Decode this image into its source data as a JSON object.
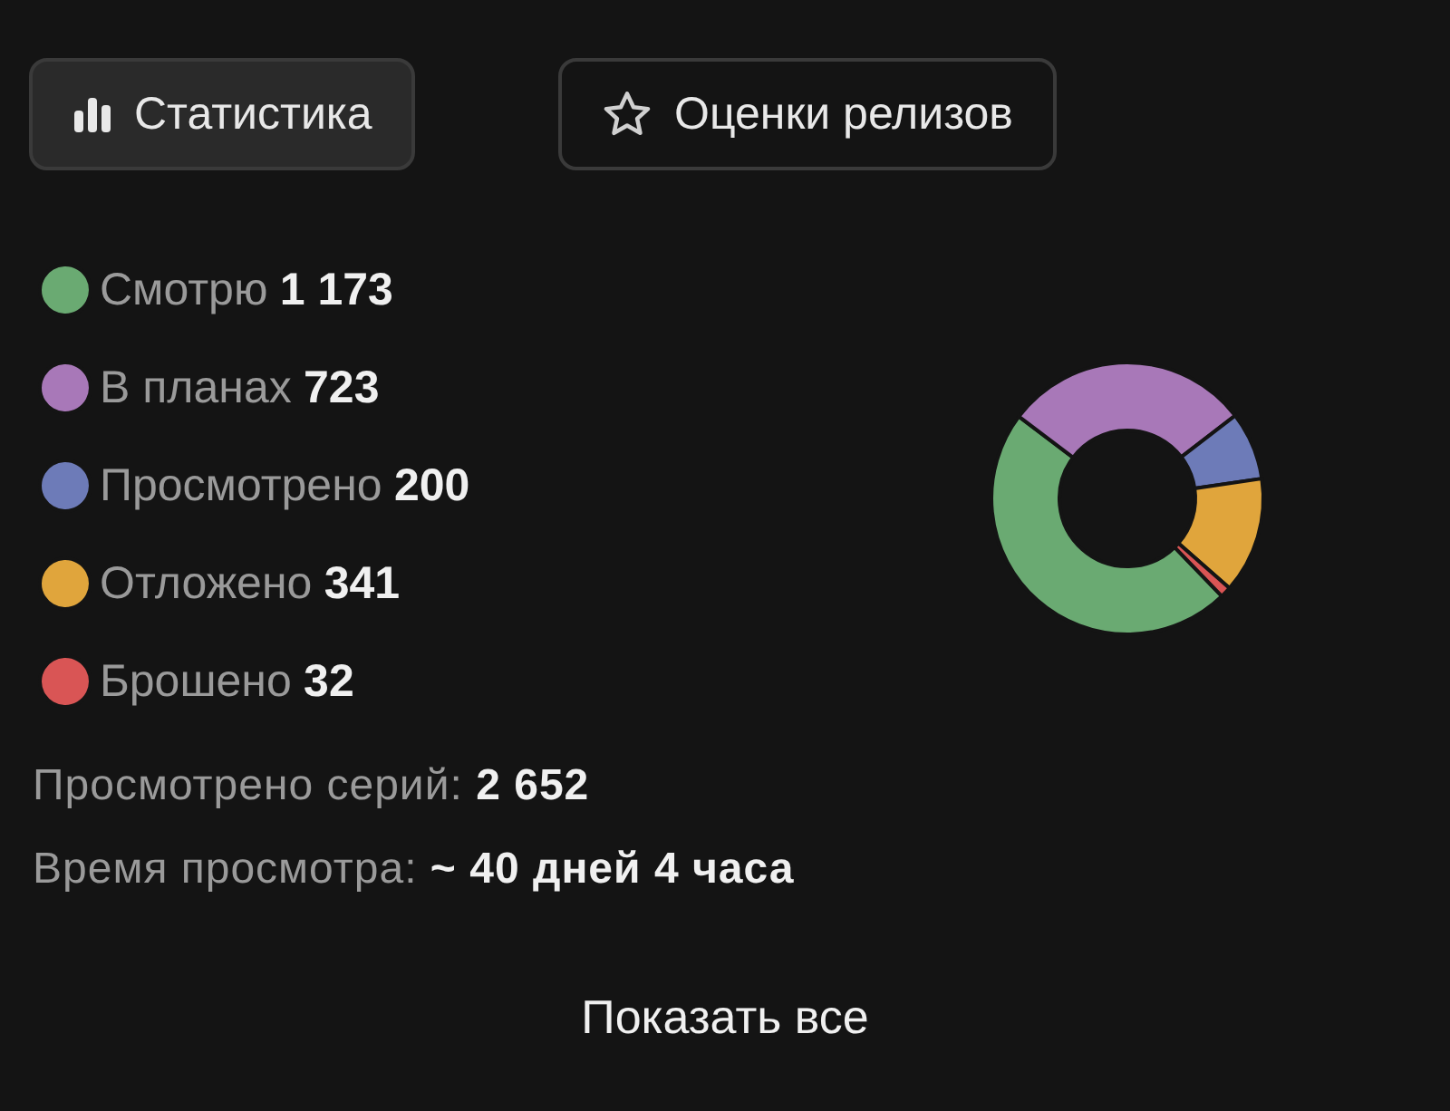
{
  "chart_data": {
    "type": "donut",
    "categories": [
      "Смотрю",
      "В планах",
      "Просмотрено",
      "Отложено",
      "Брошено"
    ],
    "values": [
      1173,
      723,
      200,
      341,
      32
    ],
    "colors": [
      "#6aaa72",
      "#a878b8",
      "#6d7bb8",
      "#e0a53c",
      "#d95555"
    ],
    "value_labels": [
      "1 173",
      "723",
      "200",
      "341",
      "32"
    ],
    "legend": "left",
    "annotations": [
      "Статистика",
      "Оценки релизов",
      "Просмотрено серий: 2 652",
      "Время просмотра: ~ 40 дней 4 часа",
      "Показать все"
    ]
  }
}
